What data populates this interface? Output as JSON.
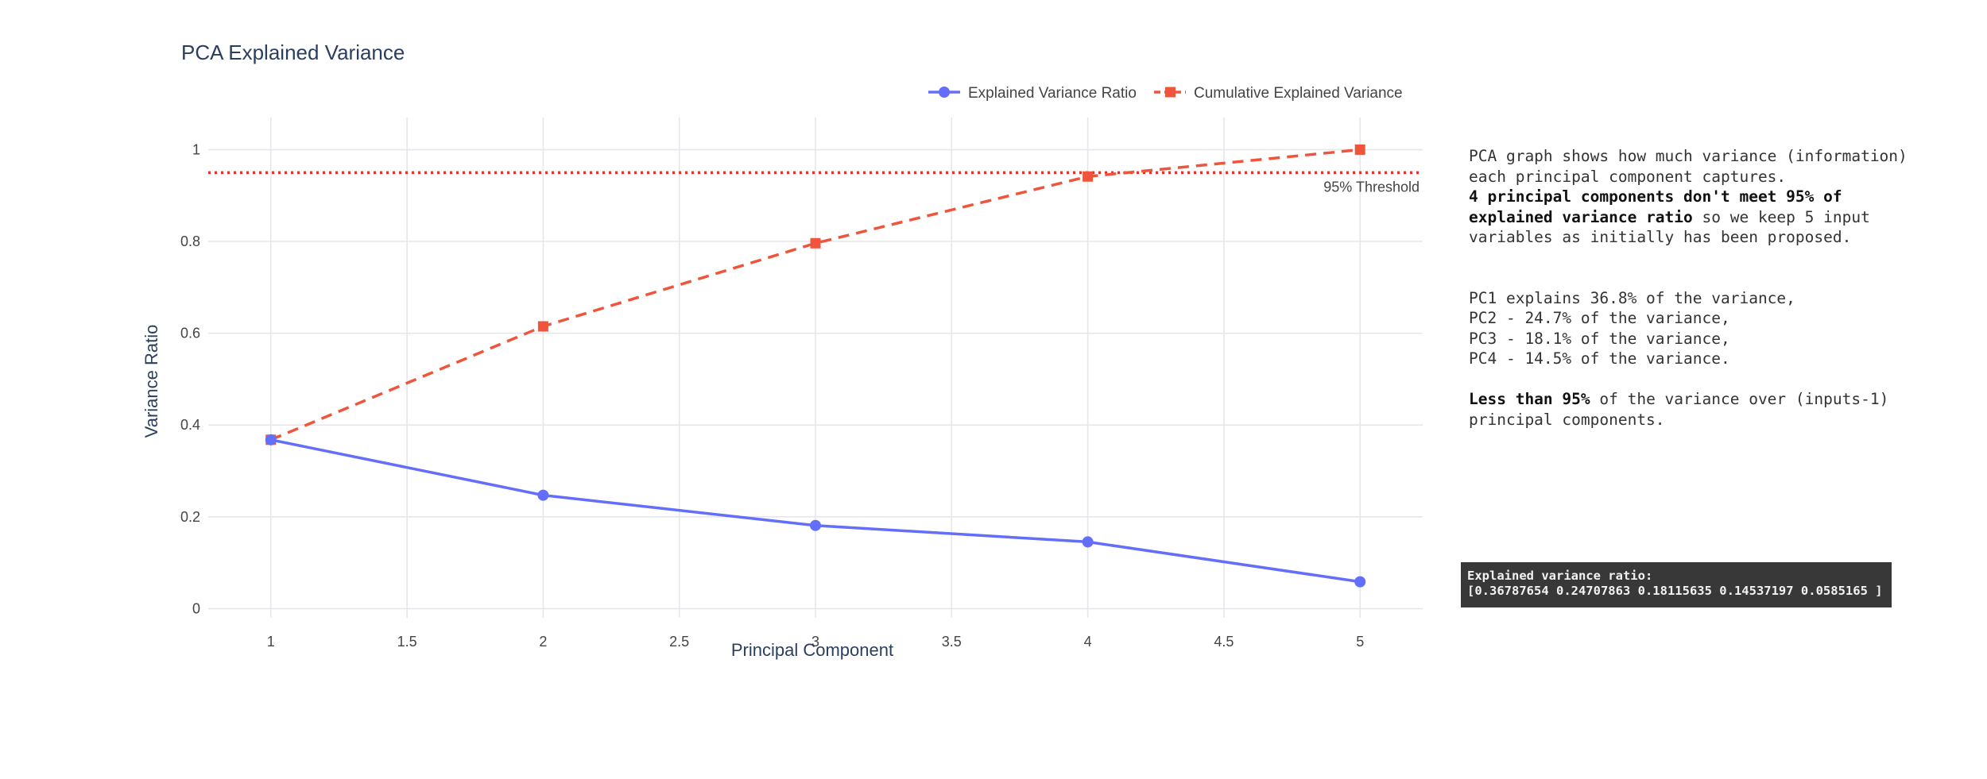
{
  "chart_data": {
    "type": "line",
    "title": "PCA Explained Variance",
    "xlabel": "Principal Component",
    "ylabel": "Variance Ratio",
    "xlim": [
      0.77,
      5.23
    ],
    "ylim": [
      -0.02,
      1.07
    ],
    "x_ticks": [
      1,
      1.5,
      2,
      2.5,
      3,
      3.5,
      4,
      4.5,
      5
    ],
    "x_tick_labels": [
      "1",
      "1.5",
      "2",
      "2.5",
      "3",
      "3.5",
      "4",
      "4.5",
      "5"
    ],
    "y_ticks": [
      0,
      0.2,
      0.4,
      0.6,
      0.8,
      1
    ],
    "y_tick_labels": [
      "0",
      "0.2",
      "0.4",
      "0.6",
      "0.8",
      "1"
    ],
    "grid": true,
    "legend_position": "top-right",
    "x": [
      1,
      2,
      3,
      4,
      5
    ],
    "series": [
      {
        "name": "Explained Variance Ratio",
        "marker": "circle",
        "line": "solid",
        "color": "#636efa",
        "values": [
          0.36787654,
          0.24707863,
          0.18115635,
          0.14537197,
          0.0585165
        ]
      },
      {
        "name": "Cumulative Explained Variance",
        "marker": "square",
        "line": "dashed",
        "color": "#ef553b",
        "values": [
          0.36787654,
          0.61495517,
          0.79611152,
          0.94148349,
          1.0
        ]
      }
    ],
    "threshold": {
      "value": 0.95,
      "label": "95% Threshold",
      "color": "#e03030",
      "style": "dotted"
    }
  },
  "annotation": {
    "line1": "PCA graph shows how much variance (information)",
    "line2": "each principal component captures.",
    "bold1": "4 principal components don't meet  95% of",
    "bold2": "explained variance ratio",
    "line3_rest": " so we keep 5 input",
    "line4": "variables as initially has been proposed.",
    "pc1": "PC1 explains 36.8% of the variance,",
    "pc2": "PC2 - 24.7% of the variance,",
    "pc3": "PC3 - 18.1% of the variance,",
    "pc4": "PC4 - 14.5% of the variance.",
    "bold3": "Less than 95%",
    "line5_rest": " of the variance over (inputs-1)",
    "line6": "principal components."
  },
  "output": {
    "line1": "Explained variance ratio:",
    "line2": "[0.36787654 0.24707863 0.18115635 0.14537197 0.0585165 ]"
  }
}
